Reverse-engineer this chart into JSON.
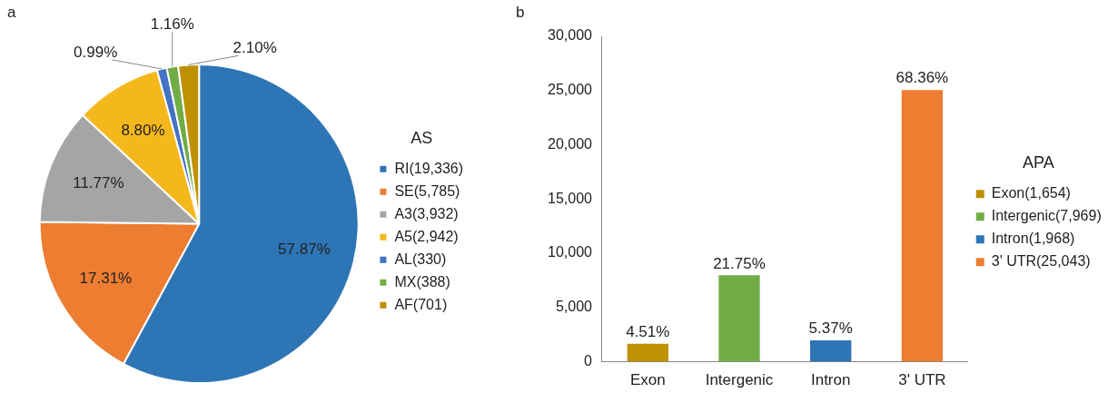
{
  "chart_data": [
    {
      "type": "pie",
      "annotations": [
        "a"
      ],
      "legend_title": "AS",
      "legend": "right",
      "categories": [
        "RI(19,336)",
        "SE(5,785)",
        "A3(3,932)",
        "A5(2,942)",
        "AL(330)",
        "MX(388)",
        "AF(701)"
      ],
      "values": [
        57.87,
        17.31,
        11.77,
        8.8,
        0.99,
        1.16,
        2.1
      ],
      "colors": [
        "#2e75b6",
        "#ed7d31",
        "#a5a5a5",
        "#f5b81c",
        "#4472c4",
        "#70ad47",
        "#bf9000"
      ],
      "value_labels": [
        "57.87%",
        "17.31%",
        "11.77%",
        "8.80%",
        "0.99%",
        "1.16%",
        "2.10%"
      ]
    },
    {
      "type": "bar",
      "annotations": [
        "b",
        {
          "text": "4.51%",
          "x": "Exon",
          "y": 1654
        },
        {
          "text": "21.75%",
          "x": "Intergenic",
          "y": 7969
        },
        {
          "text": "5.37%",
          "x": "Intron",
          "y": 1968
        },
        {
          "text": "68.36%",
          "x": "3' UTR",
          "y": 25043
        }
      ],
      "legend_title": "APA",
      "legend": "right",
      "categories": [
        "Exon",
        "Intergenic",
        "Intron",
        "3' UTR"
      ],
      "series": [
        {
          "name": "Exon(1,654)",
          "color": "#bf9000",
          "values": [
            1654,
            null,
            null,
            null
          ]
        },
        {
          "name": "Intergenic(7,969)",
          "color": "#70ad47",
          "values": [
            null,
            7969,
            null,
            null
          ]
        },
        {
          "name": "Intron(1,968)",
          "color": "#2e75b6",
          "values": [
            null,
            null,
            1968,
            null
          ]
        },
        {
          "name": "3' UTR(25,043)",
          "color": "#ed7d31",
          "values": [
            null,
            null,
            null,
            25043
          ]
        }
      ],
      "ylim": [
        0,
        30000
      ],
      "yticks": [
        0,
        {
          "value": 5000,
          "label": "5,000"
        },
        {
          "value": 10000,
          "label": "10,000"
        },
        {
          "value": 15000,
          "label": "15,000"
        },
        {
          "value": 20000,
          "label": "20,000"
        },
        {
          "value": 25000,
          "label": "25,000"
        },
        {
          "value": 30000,
          "label": "30,000"
        }
      ]
    }
  ]
}
